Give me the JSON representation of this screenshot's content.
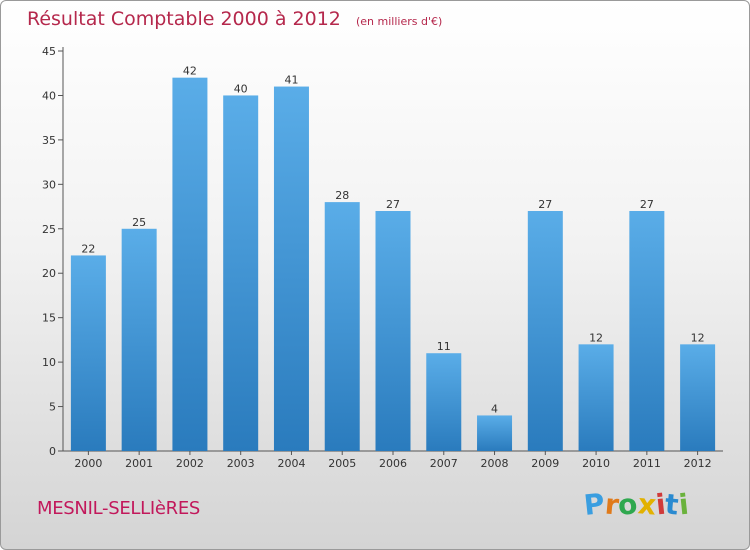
{
  "chart_data": {
    "type": "bar",
    "title": "Résultat Comptable 2000 à 2012",
    "subtitle": "(en milliers d'€)",
    "categories": [
      "2000",
      "2001",
      "2002",
      "2003",
      "2004",
      "2005",
      "2006",
      "2007",
      "2008",
      "2009",
      "2010",
      "2011",
      "2012"
    ],
    "values": [
      22,
      25,
      42,
      40,
      41,
      28,
      27,
      11,
      4,
      27,
      12,
      27,
      12
    ],
    "xlabel": "",
    "ylabel": "",
    "ylim": [
      0,
      45
    ],
    "yticks": [
      0,
      5,
      10,
      15,
      20,
      25,
      30,
      35,
      40,
      45
    ],
    "grid": false,
    "bar_color_top": "#5aade8",
    "bar_color_bottom": "#2a7bbd"
  },
  "footer": {
    "commune": "MESNIL-SELLIèRES",
    "brand_letters": [
      "P",
      "r",
      "o",
      "x",
      "i",
      "t",
      "i"
    ],
    "brand_colors": [
      "#3a9ee0",
      "#e07a1a",
      "#2fa84f",
      "#e2b100",
      "#d03a3a",
      "#2a8ad0",
      "#6ab23c"
    ]
  },
  "colors": {
    "title": "#b5284c",
    "axis": "#555555"
  }
}
